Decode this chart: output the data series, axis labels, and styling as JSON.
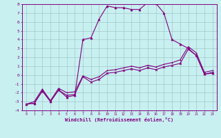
{
  "xlabel": "Windchill (Refroidissement éolien,°C)",
  "bg_color": "#c8f0f0",
  "grid_color": "#a0c8c8",
  "line_color": "#800080",
  "xlim": [
    -0.5,
    23.5
  ],
  "ylim": [
    -4,
    8
  ],
  "xticks": [
    0,
    1,
    2,
    3,
    4,
    5,
    6,
    7,
    8,
    9,
    10,
    11,
    12,
    13,
    14,
    15,
    16,
    17,
    18,
    19,
    20,
    21,
    22,
    23
  ],
  "yticks": [
    -4,
    -3,
    -2,
    -1,
    0,
    1,
    2,
    3,
    4,
    5,
    6,
    7,
    8
  ],
  "line1_x": [
    0,
    1,
    2,
    3,
    4,
    5,
    6,
    7,
    8,
    9,
    10,
    11,
    12,
    13,
    14,
    15,
    16,
    17,
    18,
    19,
    20,
    21,
    22,
    23
  ],
  "line1_y": [
    -3.3,
    -3.2,
    -1.8,
    -3.0,
    -1.7,
    -2.3,
    -2.2,
    -0.2,
    -0.8,
    -0.5,
    0.2,
    0.3,
    0.5,
    0.7,
    0.5,
    0.8,
    0.6,
    0.9,
    1.1,
    1.3,
    2.9,
    2.2,
    0.1,
    0.3
  ],
  "line2_x": [
    0,
    1,
    2,
    3,
    4,
    5,
    6,
    7,
    8,
    9,
    10,
    11,
    12,
    13,
    14,
    15,
    16,
    17,
    18,
    19,
    20,
    21,
    22,
    23
  ],
  "line2_y": [
    -3.3,
    -3.0,
    -1.6,
    -2.9,
    -1.5,
    -2.0,
    -1.9,
    -0.1,
    -0.5,
    -0.2,
    0.5,
    0.6,
    0.8,
    1.0,
    0.8,
    1.1,
    0.9,
    1.2,
    1.4,
    1.7,
    3.2,
    2.5,
    0.3,
    0.5
  ],
  "line3_x": [
    0,
    1,
    2,
    3,
    4,
    5,
    6,
    7,
    8,
    9,
    10,
    11,
    12,
    13,
    14,
    15,
    16,
    17,
    18,
    19,
    20,
    21,
    22,
    23
  ],
  "line3_y": [
    -3.3,
    -3.2,
    -1.8,
    -3.0,
    -1.7,
    -2.5,
    -2.3,
    4.0,
    4.2,
    6.3,
    7.8,
    7.6,
    7.6,
    7.4,
    7.4,
    8.2,
    8.1,
    7.0,
    4.0,
    3.5,
    3.0,
    2.2,
    0.1,
    0.2
  ]
}
